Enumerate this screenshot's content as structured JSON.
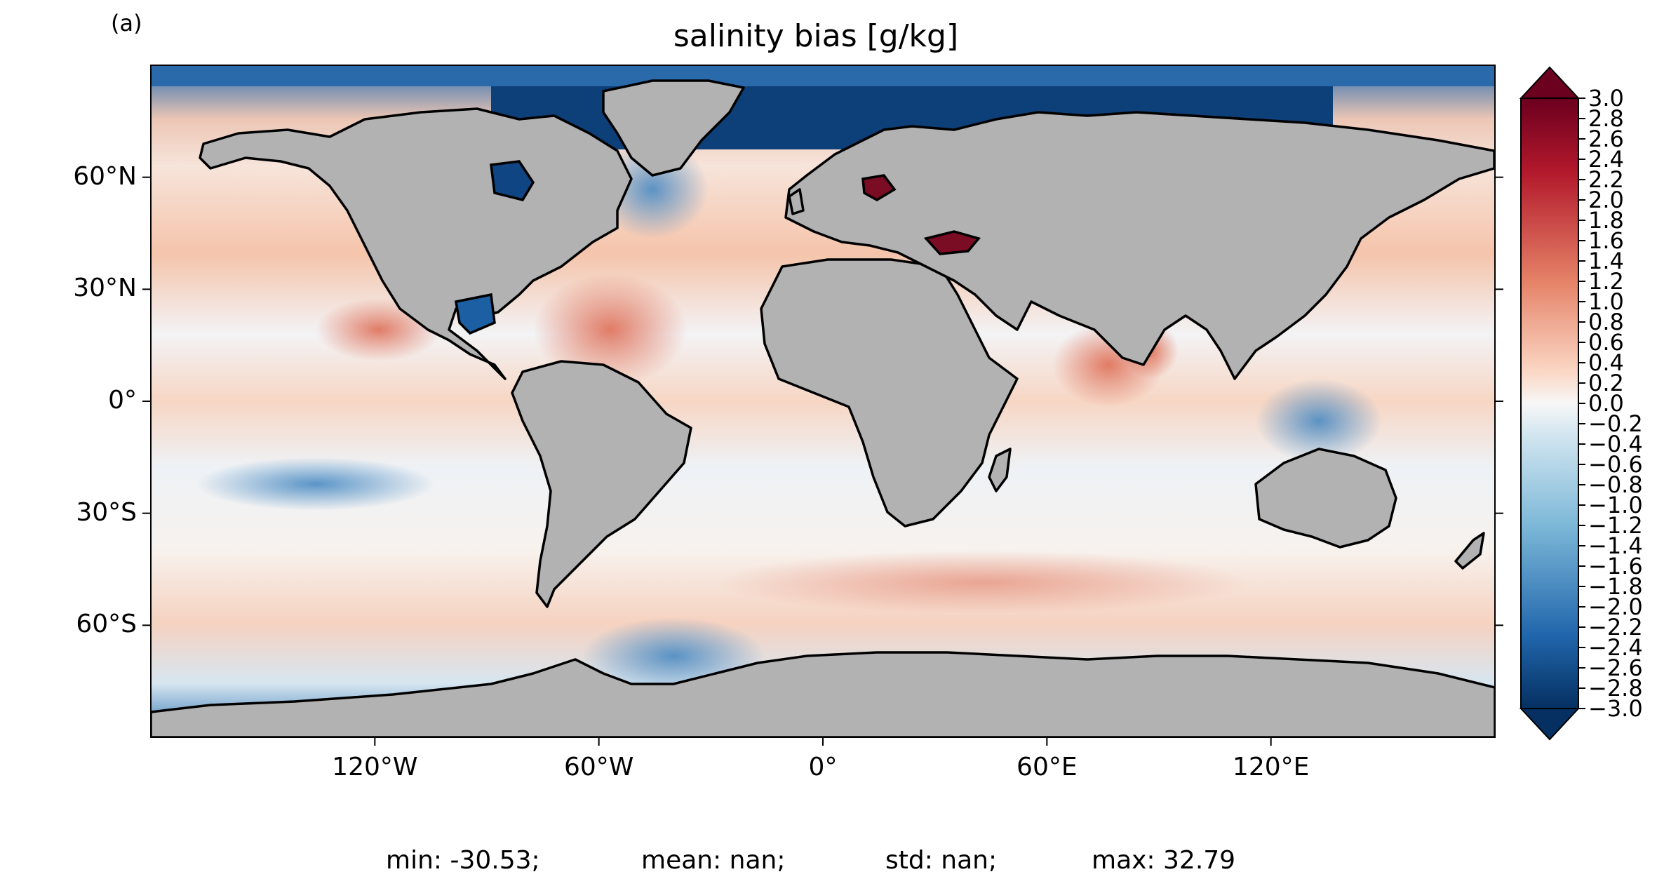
{
  "panel_label": "(a)",
  "title": "salinity bias [g/kg]",
  "stats": {
    "min": "min: -30.53;",
    "mean": "mean: nan;",
    "std": "std: nan;",
    "max": "max: 32.79"
  },
  "map": {
    "projection": "PlateCarree",
    "lon_range": [
      -180,
      180
    ],
    "lat_range": [
      -90,
      90
    ],
    "lon_ticks": [
      -120,
      -60,
      0,
      60,
      120
    ],
    "lat_ticks": [
      60,
      30,
      0,
      -30,
      -60
    ],
    "lon_tick_labels": [
      "120°W",
      "60°W",
      "0°",
      "60°E",
      "120°E"
    ],
    "lat_tick_labels": [
      "60°N",
      "30°N",
      "0°",
      "30°S",
      "60°S"
    ],
    "land_color": "#b2b2b2",
    "coastline_color": "#000000"
  },
  "colorbar": {
    "cmap": "RdBu_r",
    "range": [
      -3.0,
      3.0
    ],
    "extend": "both",
    "tick_labels": [
      "3.0",
      "2.8",
      "2.6",
      "2.4",
      "2.2",
      "2.0",
      "1.8",
      "1.6",
      "1.4",
      "1.2",
      "1.0",
      "0.8",
      "0.6",
      "0.4",
      "0.2",
      "0.0",
      "−0.2",
      "−0.4",
      "−0.6",
      "−0.8",
      "−1.0",
      "−1.2",
      "−1.4",
      "−1.6",
      "−1.8",
      "−2.0",
      "−2.2",
      "−2.4",
      "−2.6",
      "−2.8",
      "−3.0"
    ]
  }
}
